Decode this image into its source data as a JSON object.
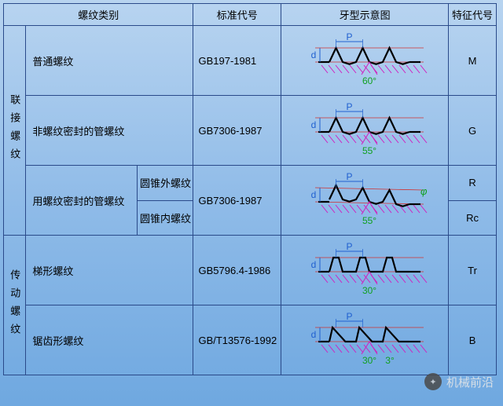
{
  "headers": {
    "category": "螺纹类别",
    "standard": "标准代号",
    "diagram": "牙型示意图",
    "feature": "特征代号"
  },
  "groups": [
    {
      "group_label": "联接螺纹",
      "rows": [
        {
          "name": "普通螺纹",
          "sub": null,
          "code": "GB197-1981",
          "feature": "M",
          "thread": {
            "angle_label": "60°",
            "angle_deg": 60,
            "shape": "triangle",
            "tilt": false
          }
        },
        {
          "name": "非螺纹密封的管螺纹",
          "sub": null,
          "code": "GB7306-1987",
          "feature": "G",
          "thread": {
            "angle_label": "55°",
            "angle_deg": 55,
            "shape": "triangle",
            "tilt": false
          }
        },
        {
          "name": "用螺纹密封的管螺纹",
          "sub": "圆锥外螺纹",
          "code": "GB7306-1987",
          "feature": "R",
          "thread": {
            "angle_label": "55°",
            "angle_deg": 55,
            "shape": "triangle",
            "tilt": true,
            "tilt_label": "φ"
          },
          "rowspan_name": 2,
          "rowspan_code": 2,
          "rowspan_diag": 2
        },
        {
          "name": null,
          "sub": "圆锥内螺纹",
          "code": null,
          "feature": "Rc"
        }
      ]
    },
    {
      "group_label": "传动螺纹",
      "rows": [
        {
          "name": "梯形螺纹",
          "sub": null,
          "code": "GB5796.4-1986",
          "feature": "Tr",
          "thread": {
            "angle_label": "30°",
            "angle_deg": 30,
            "shape": "trapezoid",
            "tilt": false
          }
        },
        {
          "name": "锯齿形螺纹",
          "sub": null,
          "code": "GB/T13576-1992",
          "feature": "B",
          "thread": {
            "angle_label": "30°",
            "angle2_label": "3°",
            "shape": "sawtooth",
            "tilt": false
          }
        }
      ]
    }
  ],
  "colors": {
    "thread_stroke": "#000000",
    "axis_line": "#d03030",
    "dim_line": "#2060d0",
    "dim_text": "#2060d0",
    "angle_mark": "#d020c0",
    "angle_text": "#10a020",
    "hatch": "#d020c0"
  },
  "dim_labels": {
    "pitch": "P",
    "depth": "d"
  },
  "watermark": "机械前沿"
}
